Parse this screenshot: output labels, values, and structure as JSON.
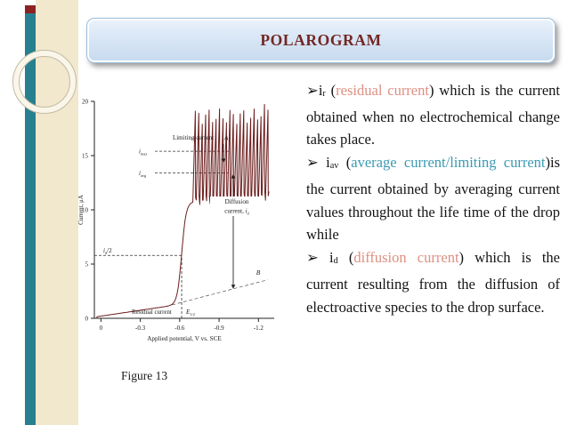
{
  "slide": {
    "title": "POLAROGRAM",
    "figure_caption": "Figure 13"
  },
  "colors": {
    "title_text": "#732723",
    "salmon": "#DE8F82",
    "teal": "#3A9AB2",
    "body_text": "#141414",
    "curve": "#6B1D1D",
    "sidebar_cream": "#F2E8CD",
    "sidebar_bar": "#27808F",
    "sidebar_cap": "#8C2222",
    "title_box_border": "#9DBEDC"
  },
  "bullets": [
    {
      "segments": [
        {
          "t": "➢"
        },
        {
          "t": "i"
        },
        {
          "t": "r",
          "sub": true
        },
        {
          "t": " ("
        },
        {
          "t": "residual current",
          "color": "salmon"
        },
        {
          "t": ") which is the current obtained when no electrochemical change takes place."
        }
      ]
    },
    {
      "segments": [
        {
          "t": "➢ "
        },
        {
          "t": "i"
        },
        {
          "t": "av",
          "sub": true
        },
        {
          "t": " ("
        },
        {
          "t": "average current/limiting current",
          "color": "teal"
        },
        {
          "t": ")is the current obtained by averaging current values throughout the life time of the drop while"
        }
      ]
    },
    {
      "segments": [
        {
          "t": "➢ "
        },
        {
          "t": "i"
        },
        {
          "t": "d",
          "sub": true
        },
        {
          "t": " ("
        },
        {
          "t": "diffusion current",
          "color": "salmon"
        },
        {
          "t": ") which is the current resulting from the diffusion of electroactive species to the drop surface."
        }
      ]
    }
  ],
  "chart_data": {
    "type": "line",
    "title": "",
    "xlabel": "Applied potential, V vs. SCE",
    "ylabel": "Current, μA",
    "xticks": [
      0,
      -0.3,
      -0.6,
      -0.9,
      -1.2
    ],
    "yticks": [
      0,
      5,
      10,
      15,
      20
    ],
    "xlim": [
      0.05,
      -1.32
    ],
    "ylim": [
      0,
      20
    ],
    "grid": false,
    "legend": false,
    "series": [
      {
        "name": "polarogram",
        "residual_current_uA_at_0V": 0.2,
        "residual_slope_uA_per_V": -1.8,
        "half_wave_potential_V": -0.615,
        "wave_height_uA": 9.3,
        "diffusion_current_uA": 11.4,
        "sigmoid_steepness": 60,
        "drop_oscillations": {
          "from_V": -0.7,
          "to_V": -1.28,
          "count": 22,
          "base_uA": 10.7,
          "peak_uA": 18.6
        }
      }
    ],
    "reference_levels": {
      "i_max_uA": 15.4,
      "i_avg_uA": 13.4,
      "id_half_uA": 5.8
    },
    "labels": {
      "limiting_current": [
        {
          "t": "Limiting current"
        }
      ],
      "point_A": [
        {
          "t": "A",
          "i": true
        }
      ],
      "i_max": [
        {
          "t": "i",
          "i": true
        },
        {
          "t": "max",
          "sub": true
        }
      ],
      "i_avg": [
        {
          "t": "i",
          "i": true
        },
        {
          "t": "avg",
          "sub": true
        }
      ],
      "diffusion_l1": [
        {
          "t": "Diffusion"
        }
      ],
      "diffusion_l2": [
        {
          "t": "current, "
        },
        {
          "t": "i",
          "i": true
        },
        {
          "t": "d",
          "sub": true
        }
      ],
      "id_half": [
        {
          "t": "i",
          "i": true
        },
        {
          "t": "d",
          "sub": true
        },
        {
          "t": "/2"
        }
      ],
      "point_B": [
        {
          "t": "B",
          "i": true
        }
      ],
      "residual": [
        {
          "t": "Residual current"
        }
      ],
      "e_half": [
        {
          "t": "E",
          "i": true
        },
        {
          "t": "1/2",
          "sub": true
        }
      ]
    }
  }
}
